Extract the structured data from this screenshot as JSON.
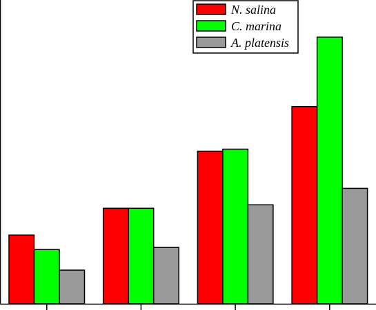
{
  "chart_data": {
    "type": "bar",
    "categories": [
      "",
      "",
      "",
      ""
    ],
    "series": [
      {
        "name": "N. salina",
        "color": "#ff0000",
        "values": [
          100,
          139,
          222,
          287
        ]
      },
      {
        "name": "C. marina",
        "color": "#00ff00",
        "values": [
          79,
          139,
          225,
          388
        ]
      },
      {
        "name": "A. platensis",
        "color": "#999999",
        "values": [
          49,
          82,
          144,
          168
        ]
      }
    ],
    "title": "",
    "xlabel": "",
    "ylabel": "",
    "ylim": [
      0,
      420
    ],
    "grid": false,
    "legend": {
      "position": "top-right"
    }
  }
}
